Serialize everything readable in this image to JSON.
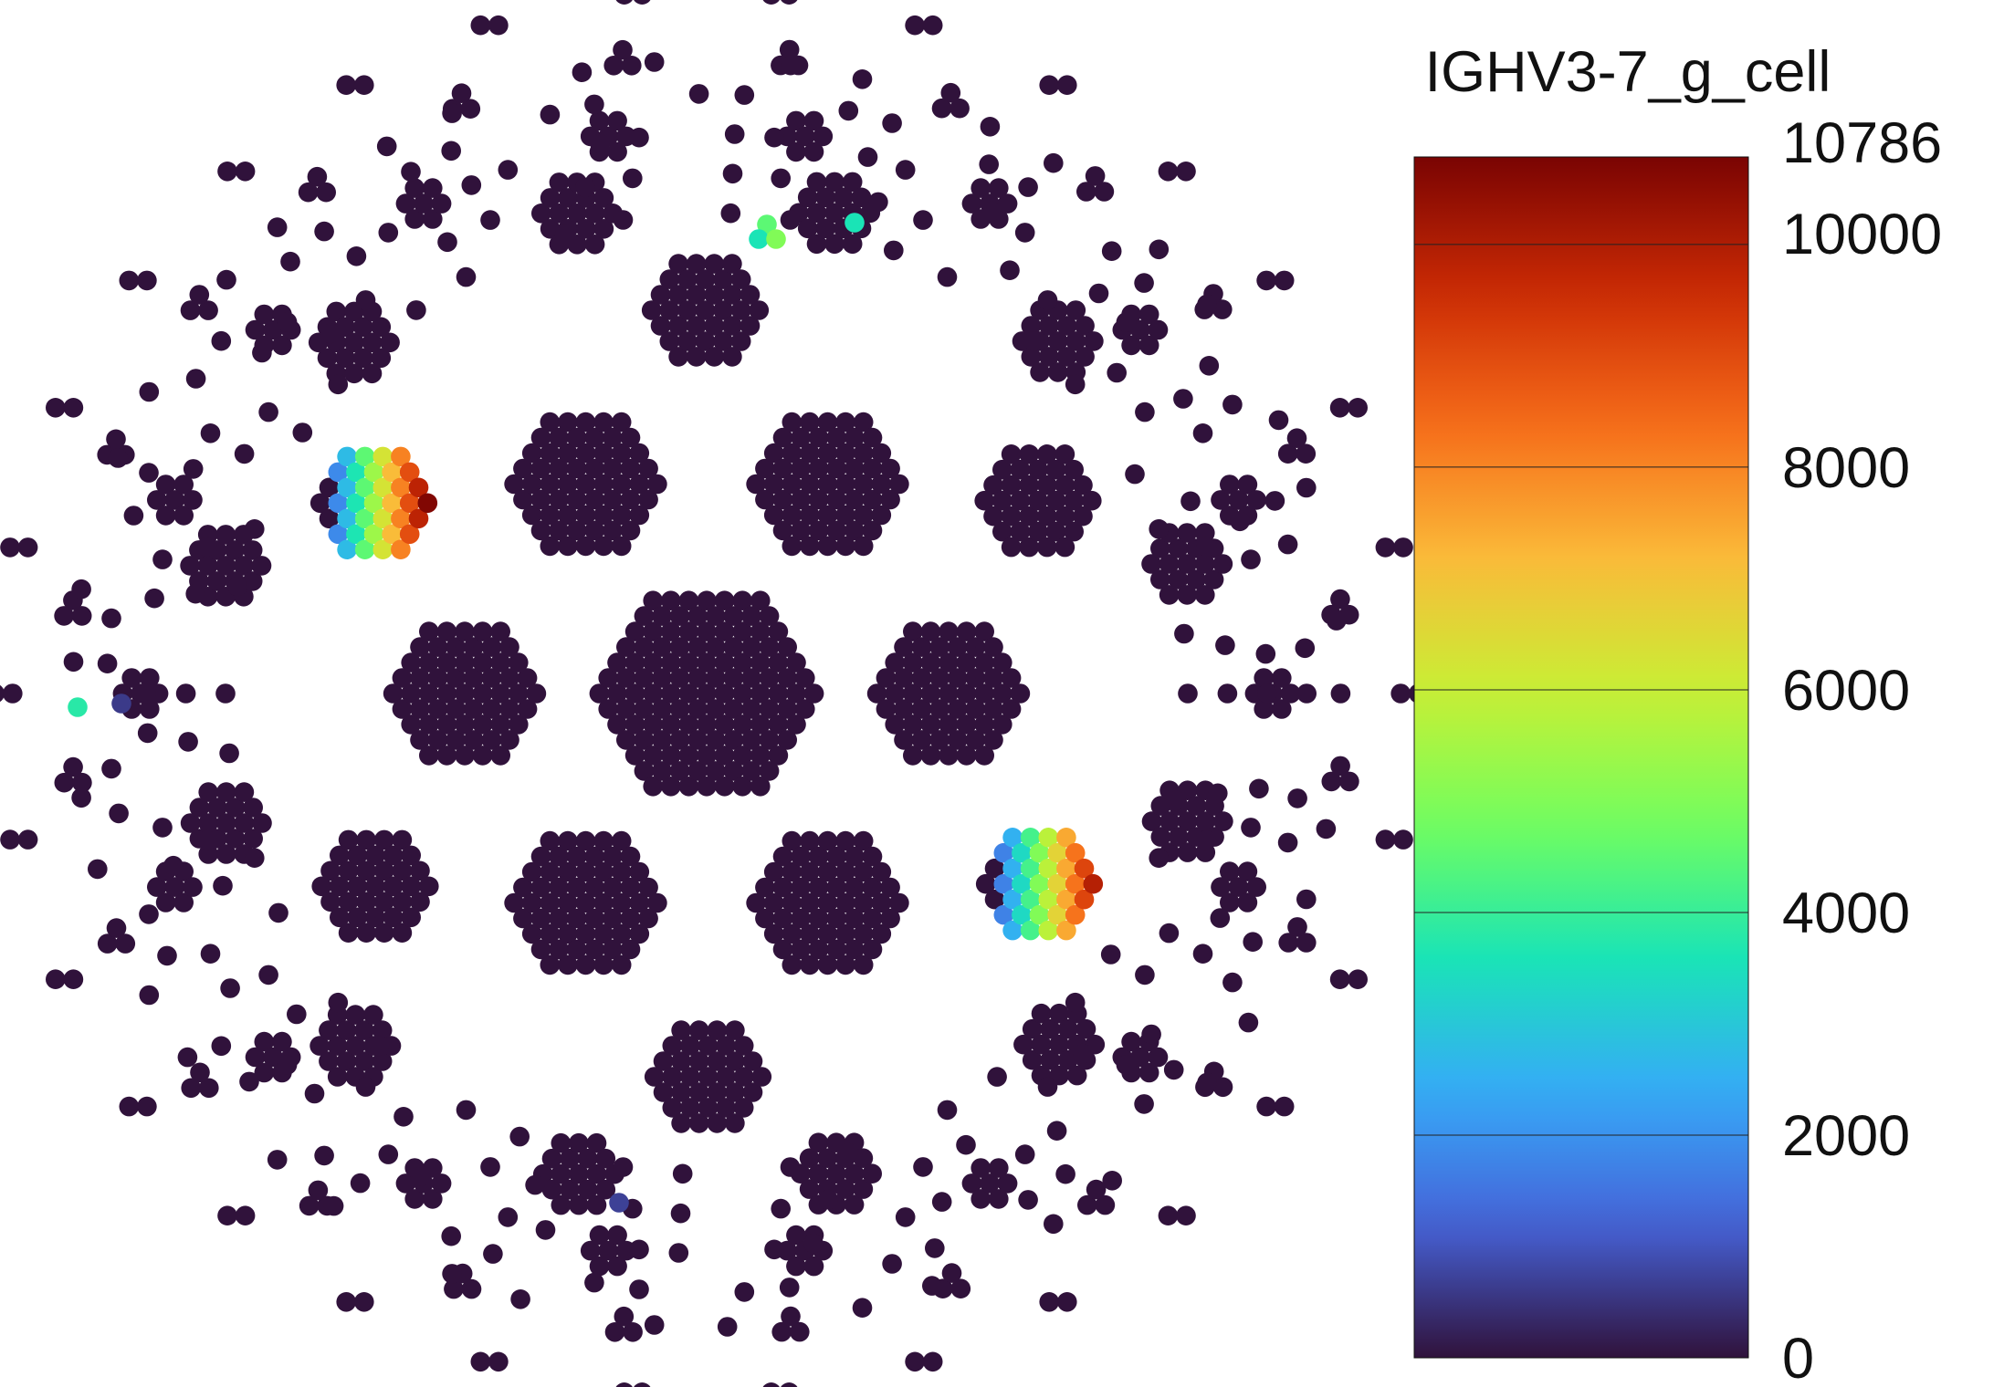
{
  "chart_data": {
    "type": "scatter",
    "subtype": "packed-circle clonotype plot",
    "title": "IGHV3-7_g_cell",
    "xlabel": "",
    "ylabel": "",
    "grid": false,
    "legend": "colorbar-right",
    "colorbar": {
      "title": "IGHV3-7_g_cell",
      "min": 0,
      "max": 10786,
      "ticks": [
        0,
        2000,
        4000,
        6000,
        8000,
        10000,
        10786
      ],
      "tick_labels": [
        "0",
        "2000",
        "4000",
        "6000",
        "8000",
        "10000",
        "10786"
      ],
      "colormap": "turbo",
      "colors": [
        "#30123b",
        "#4662d7",
        "#36aaf9",
        "#1ae4b6",
        "#72fe5e",
        "#c8ef34",
        "#faba39",
        "#f66b19",
        "#ca2a04",
        "#7a0403"
      ]
    },
    "cluster_rings": [
      {
        "ring": "center",
        "count": 1,
        "cells_per_cluster": 127
      },
      {
        "ring": "inner",
        "count": 6,
        "cells_per_cluster": 61
      },
      {
        "ring": "second",
        "count": 6,
        "cells_per_cluster": 37
      },
      {
        "ring": "third",
        "count": 12,
        "cells_per_cluster": 19
      },
      {
        "ring": "fourth",
        "count": 18,
        "cells_per_cluster": 7
      },
      {
        "ring": "fifth",
        "count": 24,
        "cells_per_cluster": 3
      },
      {
        "ring": "sixth",
        "count": 30,
        "cells_per_cluster": 2
      },
      {
        "ring": "outer",
        "count": 220,
        "cells_per_cluster": 1
      }
    ],
    "highlighted_cells": [
      {
        "cluster": "upper-right 37-cell clonotype",
        "value_range": [
          0,
          10000
        ]
      },
      {
        "cluster": "lower-left 37-cell clonotype",
        "value_range": [
          0,
          10786
        ]
      },
      {
        "cluster": "upper 3-cell clonotype",
        "value_range": [
          3500,
          5000
        ]
      },
      {
        "cluster": "upper 2-cell clonotype",
        "value_range": [
          3500,
          3600
        ]
      },
      {
        "cluster": "left singleton",
        "value": 3800
      },
      {
        "cluster": "left singleton",
        "value": 600
      },
      {
        "cluster": "bottom singleton",
        "value": 700
      }
    ],
    "background_value": 0
  }
}
